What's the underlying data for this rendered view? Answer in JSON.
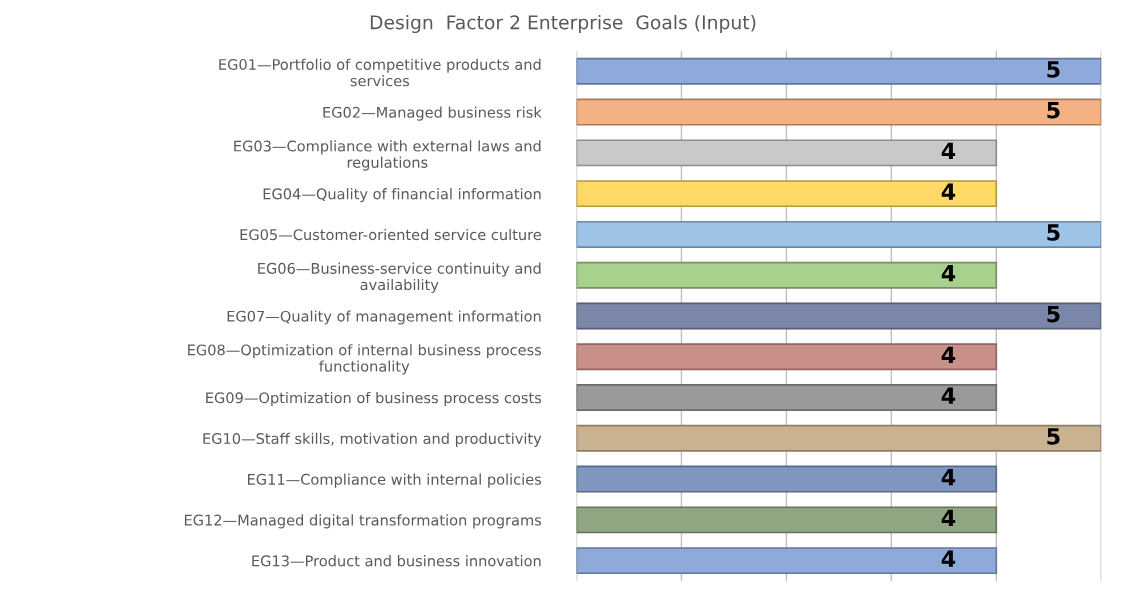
{
  "chart_data": {
    "type": "bar",
    "orientation": "horizontal",
    "title": "Design  Factor 2 Enterprise  Goals (Input)",
    "categories": [
      "EG01—Portfolio of competitive products and\nservices",
      "EG02—Managed business risk",
      "EG03—Compliance with external laws and\nregulations",
      "EG04—Quality of financial information",
      "EG05—Customer-oriented service culture",
      "EG06—Business-service continuity and\navailability",
      "EG07—Quality of management information",
      "EG08—Optimization of internal business process\nfunctionality",
      "EG09—Optimization of business process costs",
      "EG10—Staff skills, motivation and productivity",
      "EG11—Compliance with internal policies",
      "EG12—Managed digital transformation programs",
      "EG13—Product and business innovation"
    ],
    "values": [
      5,
      5,
      4,
      4,
      5,
      4,
      5,
      4,
      4,
      5,
      4,
      4,
      4
    ],
    "colors": [
      "#8ea9db",
      "#f4b183",
      "#c9c9c9",
      "#ffd966",
      "#9dc3e6",
      "#a9d18e",
      "#7a87a8",
      "#c9908a",
      "#9a9a9a",
      "#c9b28f",
      "#7f97bf",
      "#8fa682",
      "#8eaadb"
    ],
    "xlim": [
      0,
      5
    ],
    "xticks": [
      {
        "value": 0,
        "label": null
      },
      {
        "value": 1,
        "label": null
      },
      {
        "value": 2,
        "label": null
      },
      {
        "value": 3,
        "label": null
      },
      {
        "value": 4,
        "label": null
      },
      {
        "value": 5,
        "label": null
      }
    ],
    "grid": "x",
    "data_labels": true
  }
}
